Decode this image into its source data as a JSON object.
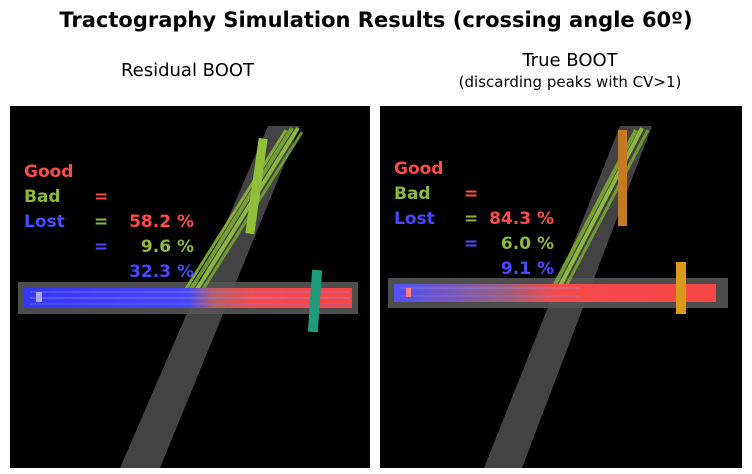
{
  "title": "Tractography Simulation Results (crossing angle 60º)",
  "colors": {
    "good": "#ff4a4a",
    "bad": "#8fb83a",
    "lost": "#4848ff",
    "background": "#000000"
  },
  "panels": [
    {
      "caption": "Residual BOOT",
      "subcaption": "",
      "stats": [
        {
          "label": "Good",
          "eq": "=",
          "value": "58.2 %"
        },
        {
          "label": "Bad",
          "eq": "=",
          "value": "9.6 %"
        },
        {
          "label": "Lost",
          "eq": "=",
          "value": "32.3 %"
        }
      ],
      "fractions": {
        "good": 0.582,
        "bad": 0.096,
        "lost": 0.323
      },
      "roi_color_diagonal": "#8fc03a",
      "roi_color_horizontal": "#1f9a7a"
    },
    {
      "caption": "True BOOT",
      "subcaption": "(discarding peaks with CV>1)",
      "stats": [
        {
          "label": "Good",
          "eq": "=",
          "value": "84.3 %"
        },
        {
          "label": "Bad",
          "eq": "=",
          "value": "6.0 %"
        },
        {
          "label": "Lost",
          "eq": "=",
          "value": "9.1 %"
        }
      ],
      "fractions": {
        "good": 0.843,
        "bad": 0.06,
        "lost": 0.091
      },
      "roi_color_diagonal": "#c47a22",
      "roi_color_horizontal": "#d89a18"
    }
  ]
}
